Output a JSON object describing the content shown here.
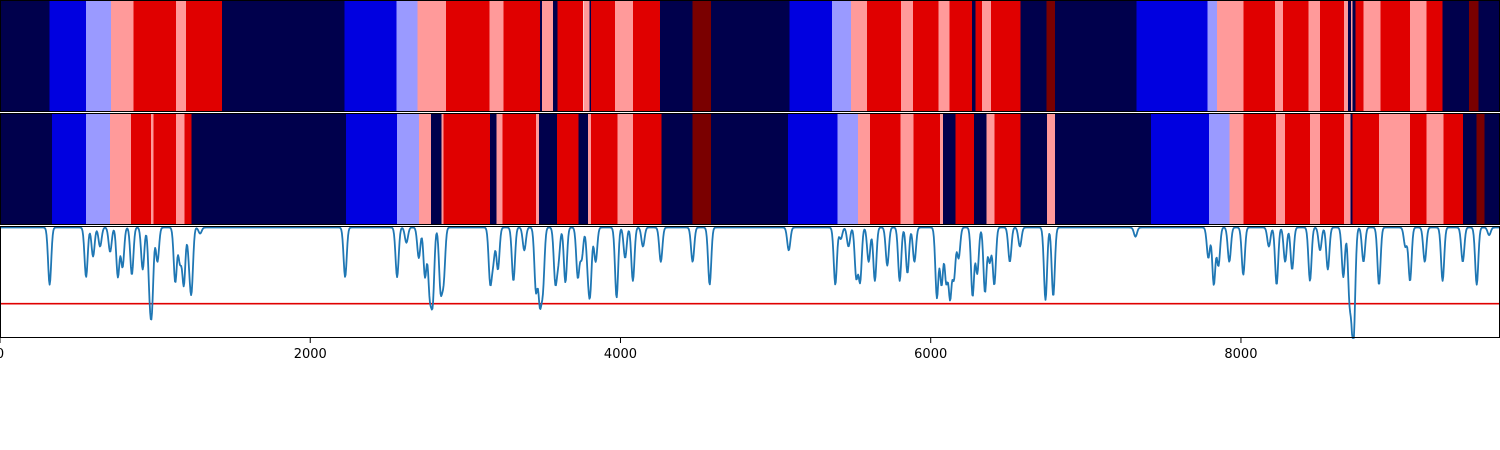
{
  "chart_data": [
    {
      "type": "heatmap",
      "name": "state-sequence-top",
      "colors": {
        "0": "#00004c",
        "1": "#0000e0",
        "2": "#9a9aff",
        "3": "#ff9a9a",
        "4": "#e00000",
        "5": "#7a0000"
      },
      "x_start": 0,
      "x_end": 9670,
      "segments": [
        [
          0,
          320,
          0
        ],
        [
          320,
          555,
          1
        ],
        [
          555,
          715,
          2
        ],
        [
          715,
          860,
          3
        ],
        [
          860,
          1135,
          4
        ],
        [
          1135,
          1200,
          3
        ],
        [
          1200,
          1430,
          4
        ],
        [
          1430,
          2220,
          0
        ],
        [
          2220,
          2555,
          1
        ],
        [
          2555,
          2690,
          2
        ],
        [
          2690,
          2875,
          3
        ],
        [
          2875,
          3155,
          4
        ],
        [
          3155,
          3245,
          3
        ],
        [
          3245,
          3480,
          4
        ],
        [
          3480,
          3495,
          0
        ],
        [
          3495,
          3565,
          3
        ],
        [
          3565,
          3595,
          0
        ],
        [
          3595,
          3760,
          4
        ],
        [
          3760,
          3800,
          3
        ],
        [
          3800,
          3810,
          0
        ],
        [
          3810,
          3965,
          4
        ],
        [
          3965,
          4080,
          3
        ],
        [
          4080,
          4255,
          4
        ],
        [
          4255,
          4465,
          0
        ],
        [
          4465,
          4585,
          5
        ],
        [
          4585,
          5090,
          0
        ],
        [
          5090,
          5365,
          1
        ],
        [
          5365,
          5485,
          2
        ],
        [
          5485,
          5590,
          3
        ],
        [
          5590,
          5810,
          4
        ],
        [
          5810,
          5885,
          3
        ],
        [
          5885,
          6050,
          4
        ],
        [
          6050,
          6120,
          3
        ],
        [
          6120,
          6265,
          4
        ],
        [
          6265,
          6290,
          0
        ],
        [
          6290,
          6330,
          4
        ],
        [
          6330,
          6390,
          3
        ],
        [
          6390,
          6580,
          4
        ],
        [
          6580,
          6745,
          0
        ],
        [
          6745,
          6800,
          5
        ],
        [
          6800,
          7325,
          0
        ],
        [
          7325,
          7785,
          1
        ],
        [
          7785,
          7845,
          2
        ],
        [
          7845,
          8015,
          3
        ],
        [
          8015,
          8220,
          4
        ],
        [
          8220,
          8270,
          3
        ],
        [
          8270,
          8435,
          4
        ],
        [
          8435,
          8510,
          3
        ],
        [
          8510,
          8665,
          4
        ],
        [
          8665,
          8690,
          3
        ],
        [
          8690,
          8710,
          0
        ],
        [
          8710,
          8720,
          3
        ],
        [
          8720,
          8740,
          0
        ],
        [
          8740,
          8790,
          4
        ],
        [
          8790,
          8900,
          3
        ],
        [
          8900,
          9090,
          4
        ],
        [
          9090,
          9195,
          3
        ],
        [
          9195,
          9300,
          4
        ],
        [
          9300,
          9470,
          0
        ],
        [
          9470,
          9530,
          5
        ],
        [
          9530,
          9670,
          0
        ]
      ]
    },
    {
      "type": "heatmap",
      "name": "state-sequence-bottom",
      "colors": {
        "0": "#00004c",
        "1": "#0000e0",
        "2": "#9a9aff",
        "3": "#ff9a9a",
        "4": "#e00000",
        "5": "#7a0000"
      },
      "x_start": 0,
      "x_end": 9670,
      "segments": [
        [
          0,
          335,
          0
        ],
        [
          335,
          555,
          1
        ],
        [
          555,
          710,
          2
        ],
        [
          710,
          845,
          3
        ],
        [
          845,
          975,
          4
        ],
        [
          975,
          990,
          3
        ],
        [
          990,
          1135,
          4
        ],
        [
          1135,
          1190,
          3
        ],
        [
          1190,
          1235,
          4
        ],
        [
          1235,
          2230,
          0
        ],
        [
          2230,
          2560,
          1
        ],
        [
          2560,
          2700,
          2
        ],
        [
          2700,
          2780,
          3
        ],
        [
          2780,
          2845,
          0
        ],
        [
          2845,
          2860,
          3
        ],
        [
          2860,
          3160,
          4
        ],
        [
          3160,
          3200,
          0
        ],
        [
          3200,
          3240,
          3
        ],
        [
          3240,
          3455,
          4
        ],
        [
          3455,
          3475,
          3
        ],
        [
          3475,
          3590,
          0
        ],
        [
          3590,
          3730,
          4
        ],
        [
          3730,
          3790,
          0
        ],
        [
          3790,
          3810,
          3
        ],
        [
          3810,
          3980,
          4
        ],
        [
          3980,
          4080,
          3
        ],
        [
          4080,
          4265,
          4
        ],
        [
          4265,
          4465,
          0
        ],
        [
          4465,
          4585,
          5
        ],
        [
          4585,
          5080,
          0
        ],
        [
          5080,
          5400,
          1
        ],
        [
          5400,
          5530,
          2
        ],
        [
          5530,
          5610,
          3
        ],
        [
          5610,
          5805,
          4
        ],
        [
          5805,
          5890,
          3
        ],
        [
          5890,
          6060,
          4
        ],
        [
          6060,
          6080,
          3
        ],
        [
          6080,
          6160,
          0
        ],
        [
          6160,
          6280,
          4
        ],
        [
          6280,
          6360,
          0
        ],
        [
          6360,
          6410,
          3
        ],
        [
          6410,
          6580,
          4
        ],
        [
          6580,
          6750,
          0
        ],
        [
          6750,
          6800,
          3
        ],
        [
          6800,
          7420,
          0
        ],
        [
          7420,
          7795,
          1
        ],
        [
          7795,
          7925,
          2
        ],
        [
          7925,
          8015,
          3
        ],
        [
          8015,
          8225,
          4
        ],
        [
          8225,
          8285,
          3
        ],
        [
          8285,
          8445,
          4
        ],
        [
          8445,
          8510,
          3
        ],
        [
          8510,
          8665,
          4
        ],
        [
          8665,
          8705,
          3
        ],
        [
          8705,
          8720,
          0
        ],
        [
          8720,
          8890,
          4
        ],
        [
          8890,
          9090,
          3
        ],
        [
          9090,
          9195,
          4
        ],
        [
          9195,
          9305,
          3
        ],
        [
          9305,
          9430,
          4
        ],
        [
          9430,
          9520,
          0
        ],
        [
          9520,
          9570,
          5
        ],
        [
          9570,
          9670,
          0
        ]
      ]
    },
    {
      "type": "line",
      "name": "probability-trace",
      "baseline_y": 1.0,
      "threshold_y": 0.0,
      "ylim": [
        -0.45,
        1.02
      ],
      "xlim": [
        0,
        9670
      ],
      "line_color": "#1f77b4",
      "threshold_color": "#e00000",
      "dips": [
        [
          320,
          0.25
        ],
        [
          555,
          0.35
        ],
        [
          600,
          0.62
        ],
        [
          645,
          0.75
        ],
        [
          710,
          0.68
        ],
        [
          760,
          0.35
        ],
        [
          790,
          0.48
        ],
        [
          850,
          0.38
        ],
        [
          920,
          0.45
        ],
        [
          965,
          0.28
        ],
        [
          980,
          0.12
        ],
        [
          1015,
          0.55
        ],
        [
          1130,
          0.28
        ],
        [
          1160,
          0.55
        ],
        [
          1185,
          0.25
        ],
        [
          1220,
          0.65
        ],
        [
          1235,
          0.25
        ],
        [
          1290,
          0.92
        ],
        [
          2225,
          0.35
        ],
        [
          2560,
          0.35
        ],
        [
          2620,
          0.8
        ],
        [
          2700,
          0.6
        ],
        [
          2740,
          0.35
        ],
        [
          2770,
          0.18
        ],
        [
          2790,
          0.08
        ],
        [
          2840,
          0.22
        ],
        [
          2860,
          0.35
        ],
        [
          3160,
          0.3
        ],
        [
          3180,
          0.6
        ],
        [
          3210,
          0.45
        ],
        [
          3310,
          0.3
        ],
        [
          3380,
          0.7
        ],
        [
          3455,
          0.18
        ],
        [
          3480,
          0.08
        ],
        [
          3500,
          0.25
        ],
        [
          3580,
          0.3
        ],
        [
          3600,
          0.6
        ],
        [
          3645,
          0.28
        ],
        [
          3725,
          0.35
        ],
        [
          3750,
          0.6
        ],
        [
          3790,
          0.55
        ],
        [
          3805,
          0.25
        ],
        [
          3840,
          0.55
        ],
        [
          3975,
          0.08
        ],
        [
          4030,
          0.6
        ],
        [
          4080,
          0.3
        ],
        [
          4145,
          0.75
        ],
        [
          4260,
          0.55
        ],
        [
          4465,
          0.55
        ],
        [
          4575,
          0.25
        ],
        [
          5085,
          0.7
        ],
        [
          5385,
          0.25
        ],
        [
          5420,
          0.85
        ],
        [
          5470,
          0.75
        ],
        [
          5520,
          0.35
        ],
        [
          5545,
          0.3
        ],
        [
          5600,
          0.55
        ],
        [
          5640,
          0.3
        ],
        [
          5720,
          0.5
        ],
        [
          5800,
          0.3
        ],
        [
          5850,
          0.4
        ],
        [
          5895,
          0.55
        ],
        [
          6040,
          0.08
        ],
        [
          6070,
          0.25
        ],
        [
          6100,
          0.3
        ],
        [
          6125,
          0.1
        ],
        [
          6150,
          0.35
        ],
        [
          6180,
          0.6
        ],
        [
          6270,
          0.1
        ],
        [
          6300,
          0.4
        ],
        [
          6350,
          0.15
        ],
        [
          6380,
          0.55
        ],
        [
          6410,
          0.25
        ],
        [
          6510,
          0.55
        ],
        [
          6575,
          0.75
        ],
        [
          6740,
          0.05
        ],
        [
          6790,
          0.1
        ],
        [
          7320,
          0.88
        ],
        [
          7790,
          0.6
        ],
        [
          7825,
          0.25
        ],
        [
          7855,
          0.5
        ],
        [
          7925,
          0.55
        ],
        [
          8015,
          0.38
        ],
        [
          8180,
          0.75
        ],
        [
          8230,
          0.25
        ],
        [
          8285,
          0.55
        ],
        [
          8330,
          0.45
        ],
        [
          8445,
          0.3
        ],
        [
          8510,
          0.7
        ],
        [
          8560,
          0.45
        ],
        [
          8660,
          0.35
        ],
        [
          8700,
          0.1
        ],
        [
          8720,
          0.08
        ],
        [
          8730,
          0.2
        ],
        [
          8790,
          0.55
        ],
        [
          8890,
          0.25
        ],
        [
          9060,
          0.75
        ],
        [
          9090,
          0.3
        ],
        [
          9185,
          0.55
        ],
        [
          9300,
          0.3
        ],
        [
          9430,
          0.55
        ],
        [
          9520,
          0.25
        ],
        [
          9600,
          0.9
        ]
      ]
    }
  ],
  "xaxis": {
    "ticks": [
      {
        "value": 0,
        "label": "0"
      },
      {
        "value": 2000,
        "label": "2000"
      },
      {
        "value": 4000,
        "label": "4000"
      },
      {
        "value": 6000,
        "label": "6000"
      },
      {
        "value": 8000,
        "label": "8000"
      }
    ]
  }
}
